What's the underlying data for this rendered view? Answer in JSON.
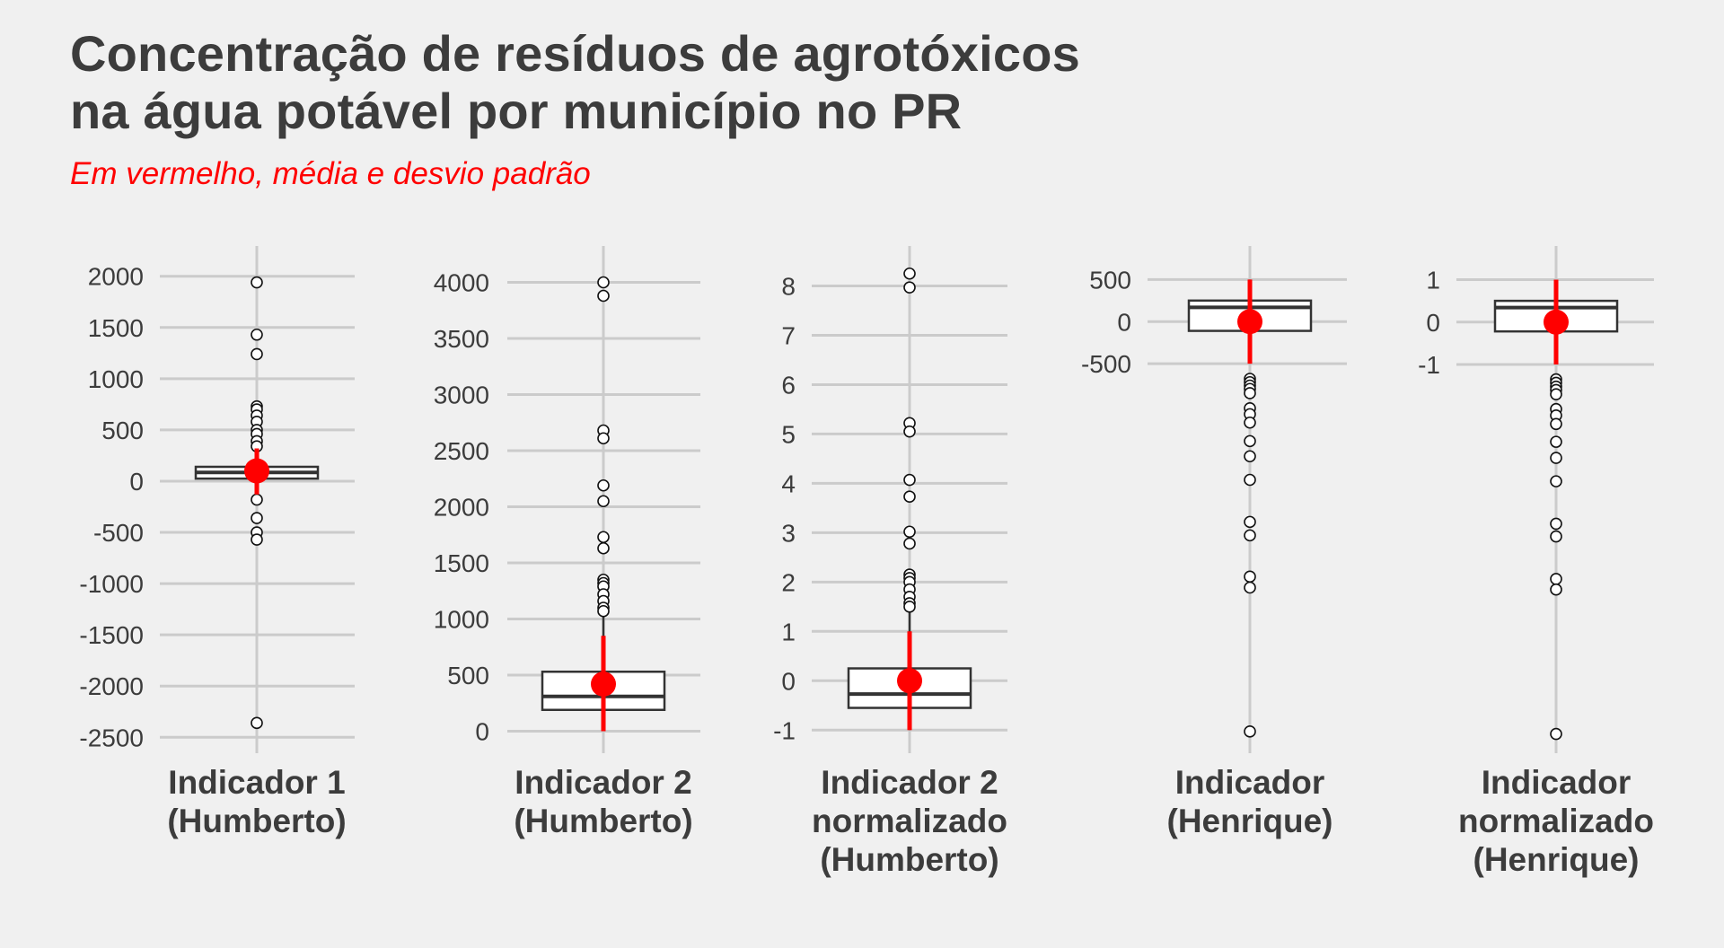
{
  "title_lines": [
    "Concentração de resíduos de agrotóxicos",
    "na água potável por município no PR"
  ],
  "subtitle": "Em vermelho, média e desvio padrão",
  "colors": {
    "background": "#f0f0f0",
    "grid": "#cbcbcb",
    "box_fill": "#ffffff",
    "box_stroke": "#333333",
    "mean_sd": "#ff0000",
    "text": "#3c3c3c"
  },
  "chart_data": [
    {
      "type": "box",
      "xlabel_lines": [
        "Indicador 1",
        "(Humberto)"
      ],
      "ylim": [
        -2550,
        2050
      ],
      "yticks": [
        -2500,
        -2000,
        -1500,
        -1000,
        -500,
        0,
        500,
        1000,
        1500,
        2000
      ],
      "tick_labels": [
        "-2500",
        "-2000",
        "-1500",
        "-1000",
        "-500",
        "0",
        "500",
        "1000",
        "1500",
        "2000"
      ],
      "q1": 25,
      "median": 85,
      "q3": 140,
      "whisker_low": -40,
      "whisker_high": 300,
      "outliers": [
        1940,
        1430,
        1240,
        730,
        700,
        640,
        580,
        500,
        460,
        390,
        340,
        -180,
        -360,
        -500,
        -570,
        -2360
      ],
      "mean": 100,
      "sd_low": -130,
      "sd_high": 320
    },
    {
      "type": "box",
      "xlabel_lines": [
        "Indicador 2",
        "(Humberto)"
      ],
      "ylim": [
        -100,
        4100
      ],
      "yticks": [
        0,
        500,
        1000,
        1500,
        2000,
        2500,
        3000,
        3500,
        4000
      ],
      "tick_labels": [
        "0",
        "500",
        "1000",
        "1500",
        "2000",
        "2500",
        "3000",
        "3500",
        "4000"
      ],
      "q1": 190,
      "median": 310,
      "q3": 530,
      "whisker_low": 0,
      "whisker_high": 1030,
      "outliers": [
        4000,
        3880,
        2680,
        2610,
        2190,
        2050,
        1730,
        1630,
        1350,
        1320,
        1290,
        1220,
        1160,
        1100,
        1070
      ],
      "mean": 420,
      "sd_low": 0,
      "sd_high": 850
    },
    {
      "type": "box",
      "xlabel_lines": [
        "Indicador 2",
        "normalizado",
        "(Humberto)"
      ],
      "ylim": [
        -1.25,
        8.3
      ],
      "yticks": [
        -1,
        0,
        1,
        2,
        3,
        4,
        5,
        6,
        7,
        8
      ],
      "tick_labels": [
        "-1",
        "0",
        "1",
        "2",
        "3",
        "4",
        "5",
        "6",
        "7",
        "8"
      ],
      "q1": -0.55,
      "median": -0.27,
      "q3": 0.25,
      "whisker_low": -1.0,
      "whisker_high": 1.45,
      "outliers": [
        8.25,
        7.97,
        5.22,
        5.05,
        4.07,
        3.73,
        3.02,
        2.78,
        2.15,
        2.08,
        2.0,
        1.85,
        1.7,
        1.57,
        1.5
      ],
      "mean": 0,
      "sd_low": -1.0,
      "sd_high": 1.0
    },
    {
      "type": "box",
      "xlabel_lines": [
        "Indicador",
        "(Henrique)"
      ],
      "ylim": [
        -5000,
        600
      ],
      "yticks": [
        -500,
        0,
        500
      ],
      "tick_labels": [
        "-500",
        "0",
        "500"
      ],
      "q1": -110,
      "median": 170,
      "q3": 250,
      "whisker_low": -500,
      "whisker_high": 500,
      "outliers": [
        -680,
        -720,
        -760,
        -800,
        -850,
        -1030,
        -1100,
        -1200,
        -1420,
        -1600,
        -1880,
        -2380,
        -2540,
        -3030,
        -3160,
        -4870
      ],
      "mean": 0,
      "sd_low": -500,
      "sd_high": 500
    },
    {
      "type": "box",
      "xlabel_lines": [
        "Indicador",
        "normalizado",
        "(Henrique)"
      ],
      "ylim": [
        -9.9,
        1.2
      ],
      "yticks": [
        -1,
        0,
        1
      ],
      "tick_labels": [
        "-1",
        "0",
        "1"
      ],
      "q1": -0.22,
      "median": 0.34,
      "q3": 0.5,
      "whisker_low": -1.0,
      "whisker_high": 1.0,
      "outliers": [
        -1.35,
        -1.43,
        -1.52,
        -1.6,
        -1.7,
        -2.05,
        -2.2,
        -2.4,
        -2.82,
        -3.2,
        -3.75,
        -4.75,
        -5.05,
        -6.05,
        -6.3,
        -9.7
      ],
      "mean": 0,
      "sd_low": -1.0,
      "sd_high": 1.0
    }
  ]
}
